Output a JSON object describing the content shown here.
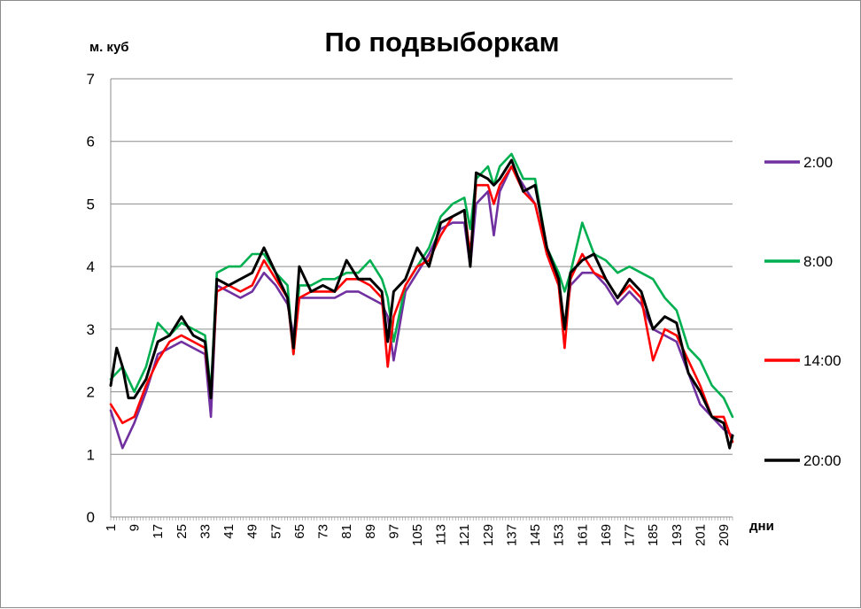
{
  "chart_data": {
    "type": "line",
    "title": "По подвыборкам",
    "ylabel": "м. куб",
    "xlabel": "дни",
    "ylim": [
      0,
      7
    ],
    "yticks": [
      0,
      1,
      2,
      3,
      4,
      5,
      6,
      7
    ],
    "xlim": [
      1,
      212
    ],
    "xticks": [
      1,
      9,
      17,
      25,
      33,
      41,
      49,
      57,
      65,
      73,
      81,
      89,
      97,
      105,
      113,
      121,
      129,
      137,
      145,
      153,
      161,
      169,
      177,
      185,
      193,
      201,
      209
    ],
    "grid": "horizontal",
    "legend": "right",
    "series": [
      {
        "name": "2:00",
        "color": "#7030a0",
        "x": [
          1,
          5,
          9,
          13,
          17,
          21,
          25,
          29,
          33,
          35,
          37,
          41,
          45,
          49,
          53,
          57,
          61,
          63,
          65,
          69,
          73,
          77,
          81,
          85,
          89,
          93,
          95,
          97,
          101,
          105,
          109,
          113,
          117,
          121,
          123,
          125,
          129,
          131,
          133,
          137,
          141,
          145,
          149,
          153,
          155,
          157,
          161,
          165,
          169,
          173,
          177,
          181,
          185,
          189,
          193,
          197,
          201,
          205,
          209,
          212
        ],
        "values": [
          1.7,
          1.1,
          1.5,
          2.0,
          2.6,
          2.7,
          2.8,
          2.7,
          2.6,
          1.6,
          3.7,
          3.6,
          3.5,
          3.6,
          3.9,
          3.7,
          3.4,
          2.9,
          3.5,
          3.5,
          3.5,
          3.5,
          3.6,
          3.6,
          3.5,
          3.4,
          3.2,
          2.5,
          3.6,
          3.9,
          4.2,
          4.6,
          4.7,
          4.7,
          4.0,
          5.0,
          5.2,
          4.5,
          5.2,
          5.6,
          5.3,
          5.0,
          4.2,
          3.7,
          3.0,
          3.7,
          3.9,
          3.9,
          3.7,
          3.4,
          3.6,
          3.4,
          3.0,
          2.9,
          2.8,
          2.3,
          1.8,
          1.6,
          1.4,
          1.3
        ]
      },
      {
        "name": "8:00",
        "color": "#00b050",
        "x": [
          1,
          5,
          9,
          13,
          17,
          21,
          25,
          29,
          33,
          35,
          37,
          41,
          45,
          49,
          53,
          57,
          61,
          63,
          65,
          69,
          73,
          77,
          81,
          85,
          89,
          93,
          95,
          97,
          101,
          105,
          109,
          113,
          117,
          121,
          123,
          125,
          129,
          131,
          133,
          137,
          141,
          145,
          149,
          153,
          155,
          157,
          161,
          165,
          169,
          173,
          177,
          181,
          185,
          189,
          193,
          197,
          201,
          205,
          209,
          212
        ],
        "values": [
          2.2,
          2.4,
          2.0,
          2.4,
          3.1,
          2.9,
          3.1,
          3.0,
          2.9,
          2.0,
          3.9,
          4.0,
          4.0,
          4.2,
          4.2,
          3.9,
          3.7,
          2.6,
          3.7,
          3.7,
          3.8,
          3.8,
          3.9,
          3.9,
          4.1,
          3.8,
          3.5,
          2.8,
          3.7,
          4.0,
          4.3,
          4.8,
          5.0,
          5.1,
          4.6,
          5.4,
          5.6,
          5.3,
          5.6,
          5.8,
          5.4,
          5.4,
          4.3,
          3.9,
          3.6,
          3.9,
          4.7,
          4.2,
          4.1,
          3.9,
          4.0,
          3.9,
          3.8,
          3.5,
          3.3,
          2.7,
          2.5,
          2.1,
          1.9,
          1.6
        ]
      },
      {
        "name": "14:00",
        "color": "#ff0000",
        "x": [
          1,
          5,
          9,
          13,
          17,
          21,
          25,
          29,
          33,
          35,
          37,
          41,
          45,
          49,
          53,
          57,
          61,
          63,
          65,
          69,
          73,
          77,
          81,
          85,
          89,
          93,
          95,
          97,
          101,
          105,
          109,
          113,
          117,
          121,
          123,
          125,
          129,
          131,
          133,
          137,
          141,
          145,
          149,
          153,
          155,
          157,
          161,
          165,
          169,
          173,
          177,
          181,
          185,
          189,
          193,
          197,
          201,
          205,
          209,
          212
        ],
        "values": [
          1.8,
          1.5,
          1.6,
          2.1,
          2.5,
          2.8,
          2.9,
          2.8,
          2.7,
          1.9,
          3.6,
          3.7,
          3.6,
          3.7,
          4.1,
          3.8,
          3.5,
          2.6,
          3.5,
          3.6,
          3.6,
          3.6,
          3.8,
          3.8,
          3.7,
          3.5,
          2.4,
          3.2,
          3.7,
          4.0,
          4.1,
          4.5,
          4.8,
          4.9,
          4.2,
          5.3,
          5.3,
          5.0,
          5.3,
          5.6,
          5.2,
          5.0,
          4.2,
          3.7,
          2.7,
          3.8,
          4.2,
          3.9,
          3.8,
          3.5,
          3.7,
          3.5,
          2.5,
          3.0,
          2.9,
          2.5,
          2.1,
          1.6,
          1.6,
          1.2
        ]
      },
      {
        "name": "20:00",
        "color": "#000000",
        "x": [
          1,
          3,
          5,
          7,
          9,
          13,
          17,
          21,
          25,
          29,
          33,
          35,
          37,
          41,
          45,
          49,
          53,
          57,
          61,
          63,
          65,
          69,
          73,
          77,
          81,
          85,
          89,
          93,
          95,
          97,
          101,
          105,
          109,
          113,
          117,
          121,
          123,
          125,
          129,
          131,
          133,
          137,
          141,
          145,
          149,
          153,
          155,
          157,
          161,
          165,
          169,
          173,
          177,
          181,
          185,
          189,
          193,
          197,
          201,
          205,
          209,
          211,
          212
        ],
        "values": [
          2.1,
          2.7,
          2.4,
          1.9,
          1.9,
          2.2,
          2.8,
          2.9,
          3.2,
          2.9,
          2.8,
          1.9,
          3.8,
          3.7,
          3.8,
          3.9,
          4.3,
          3.9,
          3.5,
          2.7,
          4.0,
          3.6,
          3.7,
          3.6,
          4.1,
          3.8,
          3.8,
          3.6,
          2.8,
          3.6,
          3.8,
          4.3,
          4.0,
          4.7,
          4.8,
          4.9,
          4.0,
          5.5,
          5.4,
          5.3,
          5.4,
          5.7,
          5.2,
          5.3,
          4.3,
          3.8,
          3.0,
          3.9,
          4.1,
          4.2,
          3.8,
          3.5,
          3.8,
          3.6,
          3.0,
          3.2,
          3.1,
          2.3,
          2.0,
          1.6,
          1.5,
          1.1,
          1.3
        ]
      }
    ]
  }
}
